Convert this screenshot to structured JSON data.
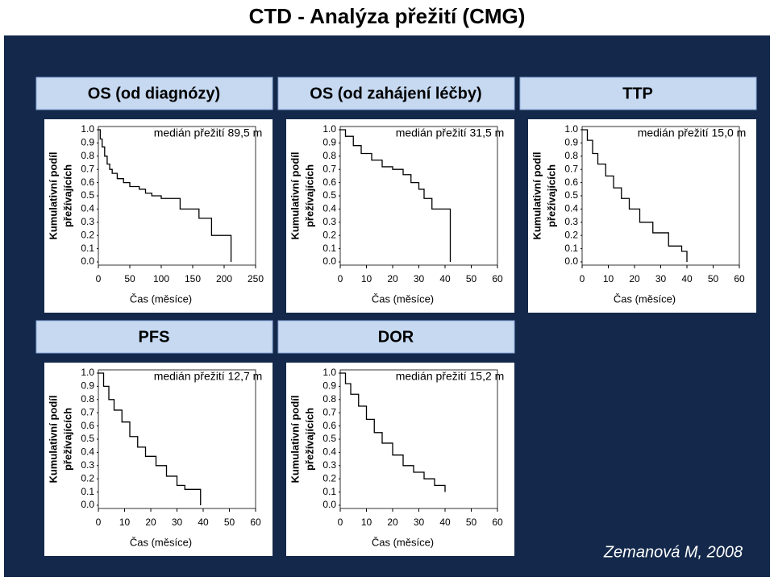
{
  "title": "CTD - Analýza přežití (CMG)",
  "source": "Zemanová M, 2008",
  "chart_data": [
    {
      "type": "step",
      "title": "OS (od diagnózy)",
      "annotation": "medián přežití 89,5 m",
      "xlabel": "Čas (měsíce)",
      "ylabel": [
        "Kumulativní podíl",
        "přežívajících"
      ],
      "color": "#000000",
      "x": [
        0,
        3,
        6,
        10,
        14,
        18,
        22,
        30,
        40,
        50,
        65,
        75,
        85,
        100,
        130,
        160,
        180,
        211
      ],
      "values": [
        1,
        0.93,
        0.87,
        0.8,
        0.74,
        0.7,
        0.67,
        0.63,
        0.6,
        0.57,
        0.55,
        0.52,
        0.5,
        0.48,
        0.4,
        0.33,
        0.2,
        0
      ],
      "xlim": [
        0,
        250
      ],
      "xticks": [
        0,
        50,
        100,
        150,
        200,
        250
      ],
      "ylim": [
        0,
        1
      ],
      "yticks": [
        {
          "value": 1,
          "label": "1.0"
        },
        0.9,
        0.8,
        0.7,
        0.6,
        0.5,
        0.4,
        0.3,
        0.2,
        0.1,
        {
          "value": 0,
          "label": "0.0"
        }
      ]
    },
    {
      "type": "step",
      "title": "OS (od zahájení léčby)",
      "annotation": "medián přežití 31,5 m",
      "xlabel": "Čas (měsíce)",
      "ylabel": [
        "Kumulativní podíl",
        "přežívajících"
      ],
      "color": "#000000",
      "x": [
        0,
        2,
        5,
        8,
        12,
        16,
        20,
        24,
        27,
        30,
        32,
        35,
        42
      ],
      "values": [
        1,
        0.95,
        0.88,
        0.82,
        0.77,
        0.72,
        0.7,
        0.66,
        0.6,
        0.55,
        0.48,
        0.4,
        0
      ],
      "xlim": [
        0,
        60
      ],
      "xticks": [
        0,
        10,
        20,
        30,
        40,
        50,
        60
      ],
      "ylim": [
        0,
        1
      ],
      "yticks": [
        {
          "value": 1,
          "label": "1.0"
        },
        0.9,
        0.8,
        0.7,
        0.6,
        0.5,
        0.4,
        0.3,
        0.2,
        0.1,
        {
          "value": 0,
          "label": "0.0"
        }
      ]
    },
    {
      "type": "step",
      "title": "TTP",
      "annotation": "medián přežití 15,0 m",
      "xlabel": "Čas (měsíce)",
      "ylabel": [
        "Kumulativní podíl",
        "přežívajících"
      ],
      "color": "#000000",
      "x": [
        0,
        2,
        4,
        6,
        9,
        12,
        15,
        18,
        22,
        27,
        33,
        38,
        40
      ],
      "values": [
        1,
        0.92,
        0.82,
        0.74,
        0.65,
        0.56,
        0.48,
        0.4,
        0.3,
        0.22,
        0.12,
        0.08,
        0
      ],
      "xlim": [
        0,
        60
      ],
      "xticks": [
        0,
        10,
        20,
        30,
        40,
        50,
        60
      ],
      "ylim": [
        0,
        1
      ],
      "yticks": [
        {
          "value": 1,
          "label": "1.0"
        },
        0.9,
        0.8,
        0.7,
        0.6,
        0.5,
        0.4,
        0.3,
        0.2,
        0.1,
        {
          "value": 0,
          "label": "0.0"
        }
      ]
    },
    {
      "type": "step",
      "title": "PFS",
      "annotation": "medián přežití 12,7 m",
      "xlabel": "Čas (měsíce)",
      "ylabel": [
        "Kumulativní podíl",
        "přežívajících"
      ],
      "color": "#000000",
      "x": [
        0,
        2,
        4,
        6,
        9,
        12,
        15,
        18,
        22,
        26,
        30,
        33,
        39
      ],
      "values": [
        1,
        0.9,
        0.8,
        0.72,
        0.63,
        0.52,
        0.44,
        0.37,
        0.3,
        0.22,
        0.15,
        0.12,
        0
      ],
      "xlim": [
        0,
        60
      ],
      "xticks": [
        0,
        10,
        20,
        30,
        40,
        50,
        60
      ],
      "ylim": [
        0,
        1
      ],
      "yticks": [
        {
          "value": 1,
          "label": "1.0"
        },
        0.9,
        0.8,
        0.7,
        0.6,
        0.5,
        0.4,
        0.3,
        0.2,
        0.1,
        {
          "value": 0,
          "label": "0.0"
        }
      ]
    },
    {
      "type": "step",
      "title": "DOR",
      "annotation": "medián přežití 15,2 m",
      "xlabel": "Čas (měsíce)",
      "ylabel": [
        "Kumulativní podíl",
        "přežívajících"
      ],
      "color": "#000000",
      "x": [
        0,
        2,
        4,
        7,
        10,
        13,
        16,
        20,
        24,
        28,
        32,
        36,
        40
      ],
      "values": [
        1,
        0.92,
        0.84,
        0.75,
        0.65,
        0.55,
        0.47,
        0.38,
        0.3,
        0.25,
        0.2,
        0.15,
        0.1
      ],
      "xlim": [
        0,
        60
      ],
      "xticks": [
        0,
        10,
        20,
        30,
        40,
        50,
        60
      ],
      "ylim": [
        0,
        1
      ],
      "yticks": [
        {
          "value": 1,
          "label": "1.0"
        },
        0.9,
        0.8,
        0.7,
        0.6,
        0.5,
        0.4,
        0.3,
        0.2,
        0.1,
        {
          "value": 0,
          "label": "0.0"
        }
      ]
    }
  ]
}
